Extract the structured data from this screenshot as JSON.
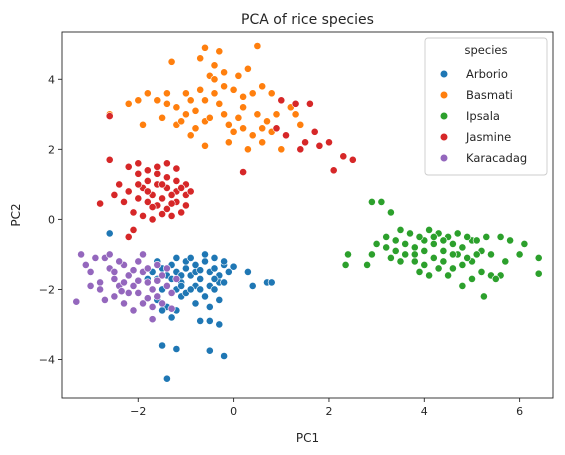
{
  "chart_data": {
    "type": "scatter",
    "title": "PCA of rice species",
    "xlabel": "PC1",
    "ylabel": "PC2",
    "xlim": [
      -3.6,
      6.7
    ],
    "ylim": [
      -5.1,
      5.35
    ],
    "xticks": [
      -2,
      0,
      2,
      4,
      6
    ],
    "yticks": [
      -4,
      -2,
      0,
      2,
      4
    ],
    "xtick_labels": [
      "−2",
      "0",
      "2",
      "4",
      "6"
    ],
    "ytick_labels": [
      "−4",
      "−2",
      "0",
      "2",
      "4"
    ],
    "grid": false,
    "legend": {
      "title": "species",
      "position": "top-right"
    },
    "series": [
      {
        "name": "Arborio",
        "color": "#1f77b4",
        "points": [
          [
            -1.6,
            -1.2
          ],
          [
            -1.5,
            -1.4
          ],
          [
            -1.4,
            -1.6
          ],
          [
            -1.3,
            -1.3
          ],
          [
            -1.2,
            -1.5
          ],
          [
            -1.1,
            -1.8
          ],
          [
            -1.0,
            -1.4
          ],
          [
            -0.9,
            -1.6
          ],
          [
            -0.8,
            -1.3
          ],
          [
            -0.7,
            -1.7
          ],
          [
            -0.6,
            -1.2
          ],
          [
            -0.5,
            -1.5
          ],
          [
            -0.4,
            -1.4
          ],
          [
            -0.3,
            -1.6
          ],
          [
            -0.2,
            -1.3
          ],
          [
            -0.6,
            -1.0
          ],
          [
            -0.4,
            -1.1
          ],
          [
            -1.2,
            -1.1
          ],
          [
            -1.0,
            -1.2
          ],
          [
            -0.8,
            -1.9
          ],
          [
            -1.4,
            -1.9
          ],
          [
            -1.5,
            -2.0
          ],
          [
            -1.3,
            -2.1
          ],
          [
            -1.1,
            -2.2
          ],
          [
            -1.6,
            -2.3
          ],
          [
            -1.4,
            -2.5
          ],
          [
            -1.2,
            -2.6
          ],
          [
            -1.0,
            -2.1
          ],
          [
            -0.9,
            -2.0
          ],
          [
            -0.7,
            -2.0
          ],
          [
            -0.5,
            -1.9
          ],
          [
            -0.3,
            -1.8
          ],
          [
            -0.1,
            -1.5
          ],
          [
            -0.2,
            -1.8
          ],
          [
            -0.4,
            -1.7
          ],
          [
            -0.8,
            -1.5
          ],
          [
            -1.1,
            -1.6
          ],
          [
            -1.3,
            -1.7
          ],
          [
            -1.7,
            -1.5
          ],
          [
            -1.8,
            -1.7
          ],
          [
            -1.2,
            -2.0
          ],
          [
            -0.6,
            -2.2
          ],
          [
            -0.8,
            -2.4
          ],
          [
            -0.5,
            -2.5
          ],
          [
            -0.3,
            -2.3
          ],
          [
            0.3,
            -1.5
          ],
          [
            0.4,
            -1.9
          ],
          [
            0.7,
            -1.8
          ],
          [
            0.8,
            -1.8
          ],
          [
            -0.7,
            -2.9
          ],
          [
            -0.5,
            -2.9
          ],
          [
            -0.3,
            -3.0
          ],
          [
            -1.3,
            -2.8
          ],
          [
            -1.5,
            -2.6
          ],
          [
            -1.5,
            -3.6
          ],
          [
            -1.2,
            -3.7
          ],
          [
            -0.5,
            -3.75
          ],
          [
            -0.2,
            -3.9
          ],
          [
            -1.4,
            -4.55
          ],
          [
            -2.6,
            -0.4
          ],
          [
            -0.9,
            -1.1
          ],
          [
            -0.2,
            -1.2
          ],
          [
            0.0,
            -1.35
          ],
          [
            -1.6,
            -1.7
          ],
          [
            -0.7,
            -1.45
          ],
          [
            -1.1,
            -1.9
          ],
          [
            -0.4,
            -2.0
          ]
        ]
      },
      {
        "name": "Basmati",
        "color": "#ff7f0e",
        "points": [
          [
            -1.6,
            3.4
          ],
          [
            -1.4,
            3.3
          ],
          [
            -1.2,
            3.2
          ],
          [
            -1.0,
            3.0
          ],
          [
            -0.8,
            3.1
          ],
          [
            -0.6,
            3.4
          ],
          [
            -0.4,
            3.6
          ],
          [
            -0.2,
            3.8
          ],
          [
            0.0,
            3.7
          ],
          [
            0.2,
            3.5
          ],
          [
            0.4,
            3.6
          ],
          [
            0.6,
            3.8
          ],
          [
            0.8,
            3.6
          ],
          [
            1.0,
            3.4
          ],
          [
            1.2,
            3.2
          ],
          [
            0.2,
            3.2
          ],
          [
            -0.2,
            3.0
          ],
          [
            -0.6,
            2.8
          ],
          [
            -0.8,
            2.6
          ],
          [
            -1.2,
            2.7
          ],
          [
            -1.4,
            3.6
          ],
          [
            -1.8,
            3.6
          ],
          [
            -2.0,
            3.4
          ],
          [
            -2.2,
            3.3
          ],
          [
            -1.9,
            2.7
          ],
          [
            -2.6,
            3.0
          ],
          [
            -0.5,
            4.1
          ],
          [
            -0.7,
            4.6
          ],
          [
            -0.6,
            4.9
          ],
          [
            -0.3,
            4.8
          ],
          [
            -0.4,
            4.4
          ],
          [
            -0.2,
            4.2
          ],
          [
            -1.3,
            4.5
          ],
          [
            0.5,
            4.95
          ],
          [
            0.1,
            4.1
          ],
          [
            -0.1,
            2.7
          ],
          [
            0.0,
            2.5
          ],
          [
            0.2,
            2.6
          ],
          [
            0.4,
            2.4
          ],
          [
            0.6,
            2.2
          ],
          [
            0.8,
            2.5
          ],
          [
            1.0,
            2.0
          ],
          [
            -0.6,
            2.1
          ],
          [
            -0.9,
            2.4
          ],
          [
            -0.1,
            2.2
          ],
          [
            0.3,
            2.0
          ],
          [
            -1.5,
            2.9
          ],
          [
            -1.1,
            2.8
          ],
          [
            -0.9,
            3.4
          ],
          [
            -0.5,
            2.9
          ],
          [
            -0.3,
            3.3
          ],
          [
            0.1,
            2.9
          ],
          [
            0.5,
            3.0
          ],
          [
            0.7,
            2.8
          ],
          [
            0.9,
            3.0
          ],
          [
            1.3,
            3.0
          ],
          [
            1.4,
            2.7
          ],
          [
            0.3,
            4.3
          ],
          [
            -0.4,
            4.0
          ],
          [
            -0.7,
            3.7
          ],
          [
            0.6,
            2.6
          ],
          [
            -1.0,
            3.6
          ]
        ]
      },
      {
        "name": "Ipsala",
        "color": "#2ca02c",
        "points": [
          [
            3.2,
            -0.5
          ],
          [
            3.4,
            -0.6
          ],
          [
            3.6,
            -0.7
          ],
          [
            3.8,
            -0.8
          ],
          [
            4.0,
            -0.6
          ],
          [
            4.2,
            -0.7
          ],
          [
            4.4,
            -0.9
          ],
          [
            4.6,
            -0.7
          ],
          [
            4.8,
            -0.8
          ],
          [
            5.0,
            -0.6
          ],
          [
            5.2,
            -0.9
          ],
          [
            5.4,
            -1.0
          ],
          [
            3.6,
            -1.0
          ],
          [
            3.8,
            -1.2
          ],
          [
            4.0,
            -1.3
          ],
          [
            4.2,
            -1.1
          ],
          [
            4.4,
            -1.2
          ],
          [
            4.6,
            -1.4
          ],
          [
            4.8,
            -1.3
          ],
          [
            5.0,
            -1.2
          ],
          [
            5.2,
            -1.5
          ],
          [
            5.4,
            -1.6
          ],
          [
            3.4,
            -0.9
          ],
          [
            3.2,
            -0.8
          ],
          [
            3.0,
            -0.7
          ],
          [
            2.9,
            -1.0
          ],
          [
            2.8,
            -1.3
          ],
          [
            2.9,
            0.5
          ],
          [
            3.1,
            0.5
          ],
          [
            3.3,
            0.2
          ],
          [
            3.5,
            -0.3
          ],
          [
            3.7,
            -0.4
          ],
          [
            3.9,
            -0.5
          ],
          [
            4.1,
            -0.3
          ],
          [
            4.3,
            -0.4
          ],
          [
            4.5,
            -0.5
          ],
          [
            4.7,
            -0.4
          ],
          [
            4.9,
            -0.5
          ],
          [
            5.1,
            -0.6
          ],
          [
            5.3,
            -0.5
          ],
          [
            5.6,
            -0.5
          ],
          [
            5.8,
            -0.6
          ],
          [
            6.1,
            -0.7
          ],
          [
            6.4,
            -1.1
          ],
          [
            6.4,
            -1.55
          ],
          [
            6.0,
            -1.0
          ],
          [
            5.7,
            -1.2
          ],
          [
            5.6,
            -1.6
          ],
          [
            5.5,
            -1.7
          ],
          [
            5.0,
            -1.7
          ],
          [
            4.8,
            -1.9
          ],
          [
            5.25,
            -2.2
          ],
          [
            2.4,
            -1.0
          ],
          [
            2.35,
            -1.3
          ],
          [
            3.9,
            -1.5
          ],
          [
            4.1,
            -1.6
          ],
          [
            4.3,
            -1.4
          ],
          [
            4.5,
            -1.6
          ],
          [
            3.5,
            -1.2
          ],
          [
            3.3,
            -1.1
          ],
          [
            4.7,
            -1.0
          ],
          [
            4.9,
            -1.1
          ],
          [
            5.1,
            -1.0
          ],
          [
            4.0,
            -0.9
          ],
          [
            4.2,
            -0.5
          ],
          [
            4.6,
            -1.0
          ],
          [
            3.8,
            -1.0
          ],
          [
            4.4,
            -0.6
          ]
        ]
      },
      {
        "name": "Jasmine",
        "color": "#d62728",
        "points": [
          [
            -2.2,
            1.5
          ],
          [
            -2.0,
            1.3
          ],
          [
            -1.8,
            1.1
          ],
          [
            -1.6,
            1.0
          ],
          [
            -1.4,
            0.9
          ],
          [
            -1.2,
            0.8
          ],
          [
            -1.0,
            0.7
          ],
          [
            -2.4,
            1.0
          ],
          [
            -2.2,
            0.8
          ],
          [
            -2.0,
            0.6
          ],
          [
            -1.8,
            0.5
          ],
          [
            -1.6,
            0.4
          ],
          [
            -1.4,
            0.3
          ],
          [
            -1.2,
            0.5
          ],
          [
            -1.0,
            0.4
          ],
          [
            -2.0,
            1.6
          ],
          [
            -1.8,
            1.4
          ],
          [
            -1.6,
            1.3
          ],
          [
            -1.4,
            1.2
          ],
          [
            -1.2,
            1.1
          ],
          [
            -1.0,
            1.0
          ],
          [
            -0.9,
            0.8
          ],
          [
            -1.9,
            0.9
          ],
          [
            -1.7,
            0.7
          ],
          [
            -1.5,
            0.6
          ],
          [
            -1.3,
            0.7
          ],
          [
            -1.1,
            0.9
          ],
          [
            -2.6,
            1.7
          ],
          [
            -2.3,
            0.5
          ],
          [
            -2.1,
            0.2
          ],
          [
            -1.9,
            0.1
          ],
          [
            -1.7,
            0.0
          ],
          [
            -1.5,
            0.15
          ],
          [
            -1.3,
            0.1
          ],
          [
            -1.6,
            1.5
          ],
          [
            -1.4,
            1.6
          ],
          [
            -1.2,
            1.45
          ],
          [
            -2.8,
            0.45
          ],
          [
            -2.5,
            0.7
          ],
          [
            -2.2,
            -0.5
          ],
          [
            -2.1,
            -0.3
          ],
          [
            -1.1,
            0.2
          ],
          [
            1.0,
            3.4
          ],
          [
            1.3,
            3.3
          ],
          [
            1.6,
            3.3
          ],
          [
            0.9,
            2.6
          ],
          [
            1.1,
            2.4
          ],
          [
            1.5,
            2.2
          ],
          [
            1.8,
            2.1
          ],
          [
            2.0,
            2.2
          ],
          [
            1.7,
            2.5
          ],
          [
            1.4,
            2.0
          ],
          [
            2.3,
            1.8
          ],
          [
            2.5,
            1.7
          ],
          [
            2.1,
            1.4
          ],
          [
            0.2,
            1.35
          ],
          [
            -2.6,
            2.95
          ],
          [
            -1.5,
            1.0
          ],
          [
            -1.8,
            0.8
          ],
          [
            -2.0,
            1.0
          ],
          [
            -1.3,
            0.45
          ],
          [
            -1.7,
            0.35
          ]
        ]
      },
      {
        "name": "Karacadag",
        "color": "#9467bd",
        "points": [
          [
            -3.3,
            -2.35
          ],
          [
            -3.2,
            -1.0
          ],
          [
            -3.1,
            -1.3
          ],
          [
            -3.0,
            -1.5
          ],
          [
            -2.8,
            -1.8
          ],
          [
            -2.7,
            -1.1
          ],
          [
            -2.6,
            -1.4
          ],
          [
            -2.5,
            -1.7
          ],
          [
            -2.4,
            -1.9
          ],
          [
            -2.3,
            -1.3
          ],
          [
            -2.2,
            -1.6
          ],
          [
            -2.1,
            -1.9
          ],
          [
            -2.0,
            -2.1
          ],
          [
            -1.9,
            -1.5
          ],
          [
            -1.8,
            -1.8
          ],
          [
            -1.7,
            -2.0
          ],
          [
            -1.6,
            -2.2
          ],
          [
            -1.5,
            -1.6
          ],
          [
            -1.4,
            -1.9
          ],
          [
            -1.3,
            -2.1
          ],
          [
            -2.5,
            -2.2
          ],
          [
            -2.3,
            -2.4
          ],
          [
            -2.1,
            -2.6
          ],
          [
            -2.8,
            -2.0
          ],
          [
            -2.0,
            -1.2
          ],
          [
            -1.8,
            -1.4
          ],
          [
            -1.6,
            -1.3
          ],
          [
            -2.4,
            -1.2
          ],
          [
            -2.6,
            -1.0
          ],
          [
            -2.9,
            -1.1
          ],
          [
            -3.0,
            -1.9
          ],
          [
            -1.9,
            -2.4
          ],
          [
            -1.7,
            -2.5
          ],
          [
            -1.5,
            -2.4
          ],
          [
            -1.7,
            -2.85
          ],
          [
            -1.3,
            -2.55
          ],
          [
            -1.2,
            -1.7
          ],
          [
            -1.4,
            -1.4
          ],
          [
            -2.2,
            -2.1
          ],
          [
            -2.7,
            -2.3
          ],
          [
            -2.3,
            -1.8
          ],
          [
            -2.0,
            -1.75
          ],
          [
            -1.8,
            -2.25
          ],
          [
            -2.5,
            -1.5
          ],
          [
            -1.9,
            -1.0
          ],
          [
            -1.6,
            -1.75
          ],
          [
            -2.1,
            -1.45
          ],
          [
            -2.35,
            -2.05
          ]
        ]
      }
    ]
  }
}
